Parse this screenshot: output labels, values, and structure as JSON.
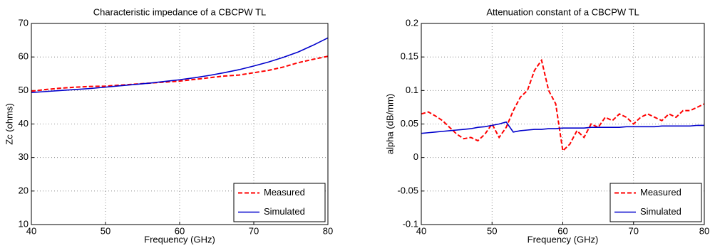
{
  "chart_data": [
    {
      "type": "line",
      "title": "Characteristic impedance of a CBCPW TL",
      "x_label": "Frequency (GHz)",
      "y_label": "Zc (ohms)",
      "x": [
        40,
        42,
        44,
        46,
        48,
        50,
        52,
        54,
        56,
        58,
        60,
        62,
        64,
        66,
        68,
        70,
        72,
        74,
        76,
        78,
        80
      ],
      "series": [
        {
          "name": "Measured",
          "color": "#ff0000",
          "dashed": true,
          "values": [
            49.8,
            50.3,
            50.7,
            51.0,
            51.2,
            51.3,
            51.6,
            51.9,
            52.2,
            52.5,
            52.8,
            53.3,
            53.8,
            54.3,
            54.6,
            55.3,
            56.0,
            57.0,
            58.3,
            59.3,
            60.2
          ]
        },
        {
          "name": "Simulated",
          "color": "#0000cc",
          "dashed": false,
          "values": [
            49.4,
            49.7,
            50.0,
            50.3,
            50.6,
            51.0,
            51.4,
            51.8,
            52.2,
            52.7,
            53.2,
            53.8,
            54.5,
            55.3,
            56.2,
            57.3,
            58.5,
            59.9,
            61.5,
            63.5,
            65.7
          ]
        }
      ],
      "xlim": [
        40,
        80
      ],
      "xticks": [
        40,
        50,
        60,
        70,
        80
      ],
      "ylim": [
        10,
        70
      ],
      "yticks": [
        10,
        20,
        30,
        40,
        50,
        60,
        70
      ],
      "grid": true,
      "legend": "lower right"
    },
    {
      "type": "line",
      "title": "Attenuation constant of a CBCPW TL",
      "x_label": "Frequency (GHz)",
      "y_label": "alpha (dB/mm)",
      "x": [
        40,
        41,
        42,
        43,
        44,
        45,
        46,
        47,
        48,
        49,
        50,
        51,
        52,
        53,
        54,
        55,
        56,
        57,
        58,
        59,
        60,
        61,
        62,
        63,
        64,
        65,
        66,
        67,
        68,
        69,
        70,
        71,
        72,
        73,
        74,
        75,
        76,
        77,
        78,
        79,
        80
      ],
      "series": [
        {
          "name": "Measured",
          "color": "#ff0000",
          "dashed": true,
          "values": [
            0.065,
            0.068,
            0.062,
            0.055,
            0.045,
            0.035,
            0.028,
            0.03,
            0.025,
            0.035,
            0.05,
            0.03,
            0.045,
            0.07,
            0.09,
            0.1,
            0.13,
            0.145,
            0.1,
            0.08,
            0.01,
            0.02,
            0.04,
            0.03,
            0.05,
            0.045,
            0.06,
            0.055,
            0.065,
            0.06,
            0.05,
            0.06,
            0.065,
            0.06,
            0.055,
            0.065,
            0.06,
            0.07,
            0.07,
            0.075,
            0.08
          ]
        },
        {
          "name": "Simulated",
          "color": "#0000cc",
          "dashed": false,
          "values": [
            0.036,
            0.037,
            0.038,
            0.039,
            0.04,
            0.041,
            0.042,
            0.043,
            0.045,
            0.046,
            0.048,
            0.05,
            0.053,
            0.038,
            0.04,
            0.041,
            0.042,
            0.042,
            0.043,
            0.043,
            0.044,
            0.044,
            0.044,
            0.044,
            0.045,
            0.045,
            0.045,
            0.045,
            0.045,
            0.046,
            0.046,
            0.046,
            0.046,
            0.046,
            0.047,
            0.047,
            0.047,
            0.047,
            0.047,
            0.048,
            0.048
          ]
        }
      ],
      "xlim": [
        40,
        80
      ],
      "xticks": [
        40,
        50,
        60,
        70,
        80
      ],
      "ylim": [
        -0.1,
        0.2
      ],
      "yticks": [
        -0.1,
        -0.05,
        0,
        0.05,
        0.1,
        0.15,
        0.2
      ],
      "grid": true,
      "legend": "lower right"
    }
  ]
}
